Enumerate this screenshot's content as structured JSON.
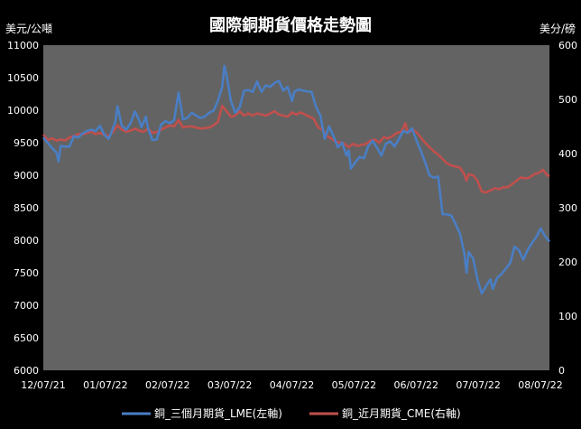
{
  "chart_data": {
    "type": "line",
    "title": "國際銅期貨價格走勢圖",
    "ylabel_left": "美元/公噸",
    "ylabel_right": "美分/磅",
    "ylim_left": [
      6000,
      11000
    ],
    "ylim_right": [
      0,
      600
    ],
    "yticks_left": [
      "6000",
      "6500",
      "7000",
      "7500",
      "8000",
      "8500",
      "9000",
      "9500",
      "10000",
      "10500",
      "11000"
    ],
    "yticks_right": [
      "0",
      "100",
      "200",
      "300",
      "400",
      "500",
      "600"
    ],
    "x_ticks": [
      "12/07/21",
      "01/07/22",
      "02/07/22",
      "03/07/22",
      "04/07/22",
      "05/07/22",
      "06/07/22",
      "07/07/22",
      "08/07/22"
    ],
    "grid": false,
    "legend_position": "bottom",
    "colors": {
      "background": "#000000",
      "plot_area": "#636363",
      "series_lme": "#4a7ec4",
      "series_cme": "#c0504d",
      "text": "#ffffff"
    },
    "series": [
      {
        "name": "銅_三個月期貨_LME(左軸)",
        "axis": "left",
        "points": [
          [
            0,
            9580
          ],
          [
            2,
            9500
          ],
          [
            4,
            9420
          ],
          [
            6,
            9350
          ],
          [
            7,
            9210
          ],
          [
            8,
            9450
          ],
          [
            10,
            9440
          ],
          [
            12,
            9440
          ],
          [
            14,
            9600
          ],
          [
            16,
            9580
          ],
          [
            18,
            9640
          ],
          [
            20,
            9680
          ],
          [
            22,
            9700
          ],
          [
            24,
            9680
          ],
          [
            26,
            9760
          ],
          [
            28,
            9620
          ],
          [
            30,
            9560
          ],
          [
            31,
            9640
          ],
          [
            33,
            9820
          ],
          [
            34,
            10060
          ],
          [
            36,
            9760
          ],
          [
            38,
            9700
          ],
          [
            40,
            9800
          ],
          [
            42,
            9980
          ],
          [
            44,
            9840
          ],
          [
            45,
            9740
          ],
          [
            47,
            9900
          ],
          [
            48,
            9720
          ],
          [
            50,
            9540
          ],
          [
            52,
            9550
          ],
          [
            54,
            9780
          ],
          [
            56,
            9830
          ],
          [
            58,
            9800
          ],
          [
            60,
            9850
          ],
          [
            62,
            10270
          ],
          [
            64,
            9860
          ],
          [
            66,
            9880
          ],
          [
            68,
            9960
          ],
          [
            70,
            9920
          ],
          [
            72,
            9880
          ],
          [
            74,
            9900
          ],
          [
            76,
            9960
          ],
          [
            78,
            9990
          ],
          [
            80,
            10140
          ],
          [
            82,
            10360
          ],
          [
            83,
            10680
          ],
          [
            84,
            10540
          ],
          [
            86,
            10140
          ],
          [
            88,
            9960
          ],
          [
            90,
            10040
          ],
          [
            92,
            10300
          ],
          [
            94,
            10310
          ],
          [
            96,
            10280
          ],
          [
            98,
            10440
          ],
          [
            100,
            10280
          ],
          [
            102,
            10380
          ],
          [
            104,
            10360
          ],
          [
            106,
            10420
          ],
          [
            108,
            10450
          ],
          [
            110,
            10300
          ],
          [
            112,
            10360
          ],
          [
            114,
            10140
          ],
          [
            115,
            10280
          ],
          [
            117,
            10320
          ],
          [
            119,
            10300
          ],
          [
            121,
            10290
          ],
          [
            123,
            10280
          ],
          [
            125,
            10050
          ],
          [
            127,
            9920
          ],
          [
            129,
            9560
          ],
          [
            131,
            9750
          ],
          [
            133,
            9600
          ],
          [
            135,
            9430
          ],
          [
            137,
            9500
          ],
          [
            139,
            9300
          ],
          [
            140,
            9380
          ],
          [
            141,
            9100
          ],
          [
            143,
            9200
          ],
          [
            145,
            9280
          ],
          [
            147,
            9260
          ],
          [
            149,
            9450
          ],
          [
            151,
            9530
          ],
          [
            153,
            9420
          ],
          [
            155,
            9300
          ],
          [
            157,
            9480
          ],
          [
            159,
            9520
          ],
          [
            161,
            9440
          ],
          [
            163,
            9560
          ],
          [
            165,
            9680
          ],
          [
            167,
            9650
          ],
          [
            169,
            9720
          ],
          [
            171,
            9540
          ],
          [
            173,
            9380
          ],
          [
            175,
            9200
          ],
          [
            177,
            9000
          ],
          [
            179,
            8960
          ],
          [
            181,
            8980
          ],
          [
            183,
            8400
          ],
          [
            185,
            8400
          ],
          [
            187,
            8380
          ],
          [
            189,
            8250
          ],
          [
            191,
            8100
          ],
          [
            193,
            7800
          ],
          [
            194,
            7500
          ],
          [
            195,
            7820
          ],
          [
            197,
            7720
          ],
          [
            199,
            7400
          ],
          [
            201,
            7180
          ],
          [
            203,
            7300
          ],
          [
            205,
            7400
          ],
          [
            206,
            7250
          ],
          [
            208,
            7420
          ],
          [
            210,
            7480
          ],
          [
            212,
            7560
          ],
          [
            214,
            7650
          ],
          [
            216,
            7900
          ],
          [
            218,
            7850
          ],
          [
            220,
            7700
          ],
          [
            222,
            7850
          ],
          [
            224,
            7960
          ],
          [
            226,
            8050
          ],
          [
            228,
            8180
          ],
          [
            230,
            8060
          ],
          [
            232,
            7980
          ]
        ]
      },
      {
        "name": "銅_近月期貨_CME(右軸)",
        "axis": "right",
        "points": [
          [
            0,
            435
          ],
          [
            2,
            425
          ],
          [
            4,
            428
          ],
          [
            6,
            424
          ],
          [
            8,
            426
          ],
          [
            10,
            424
          ],
          [
            12,
            430
          ],
          [
            14,
            432
          ],
          [
            16,
            436
          ],
          [
            18,
            435
          ],
          [
            20,
            438
          ],
          [
            22,
            440
          ],
          [
            24,
            436
          ],
          [
            26,
            438
          ],
          [
            28,
            434
          ],
          [
            30,
            432
          ],
          [
            32,
            440
          ],
          [
            34,
            452
          ],
          [
            36,
            444
          ],
          [
            38,
            440
          ],
          [
            40,
            442
          ],
          [
            42,
            446
          ],
          [
            44,
            442
          ],
          [
            46,
            440
          ],
          [
            48,
            446
          ],
          [
            50,
            438
          ],
          [
            52,
            440
          ],
          [
            54,
            444
          ],
          [
            56,
            448
          ],
          [
            58,
            452
          ],
          [
            60,
            450
          ],
          [
            62,
            462
          ],
          [
            64,
            448
          ],
          [
            66,
            450
          ],
          [
            68,
            450
          ],
          [
            70,
            448
          ],
          [
            72,
            446
          ],
          [
            74,
            447
          ],
          [
            76,
            448
          ],
          [
            78,
            452
          ],
          [
            80,
            458
          ],
          [
            82,
            488
          ],
          [
            84,
            478
          ],
          [
            86,
            468
          ],
          [
            88,
            470
          ],
          [
            90,
            478
          ],
          [
            92,
            470
          ],
          [
            94,
            474
          ],
          [
            96,
            470
          ],
          [
            98,
            474
          ],
          [
            100,
            472
          ],
          [
            102,
            470
          ],
          [
            104,
            474
          ],
          [
            106,
            478
          ],
          [
            108,
            472
          ],
          [
            110,
            470
          ],
          [
            112,
            468
          ],
          [
            114,
            476
          ],
          [
            116,
            472
          ],
          [
            118,
            476
          ],
          [
            120,
            472
          ],
          [
            122,
            468
          ],
          [
            124,
            464
          ],
          [
            126,
            448
          ],
          [
            128,
            444
          ],
          [
            130,
            432
          ],
          [
            132,
            428
          ],
          [
            134,
            422
          ],
          [
            136,
            420
          ],
          [
            138,
            418
          ],
          [
            140,
            412
          ],
          [
            142,
            418
          ],
          [
            144,
            414
          ],
          [
            146,
            416
          ],
          [
            148,
            418
          ],
          [
            150,
            424
          ],
          [
            152,
            426
          ],
          [
            154,
            420
          ],
          [
            156,
            430
          ],
          [
            158,
            428
          ],
          [
            160,
            432
          ],
          [
            162,
            438
          ],
          [
            164,
            440
          ],
          [
            166,
            456
          ],
          [
            167,
            438
          ],
          [
            169,
            444
          ],
          [
            171,
            440
          ],
          [
            173,
            430
          ],
          [
            175,
            420
          ],
          [
            177,
            412
          ],
          [
            179,
            404
          ],
          [
            181,
            398
          ],
          [
            183,
            390
          ],
          [
            185,
            382
          ],
          [
            187,
            378
          ],
          [
            189,
            376
          ],
          [
            191,
            374
          ],
          [
            193,
            362
          ],
          [
            194,
            350
          ],
          [
            195,
            362
          ],
          [
            197,
            360
          ],
          [
            199,
            350
          ],
          [
            201,
            330
          ],
          [
            203,
            328
          ],
          [
            205,
            332
          ],
          [
            207,
            336
          ],
          [
            209,
            334
          ],
          [
            211,
            338
          ],
          [
            213,
            338
          ],
          [
            215,
            344
          ],
          [
            217,
            350
          ],
          [
            219,
            356
          ],
          [
            221,
            354
          ],
          [
            223,
            356
          ],
          [
            225,
            362
          ],
          [
            227,
            364
          ],
          [
            229,
            370
          ],
          [
            231,
            360
          ],
          [
            232,
            358
          ]
        ]
      }
    ]
  }
}
